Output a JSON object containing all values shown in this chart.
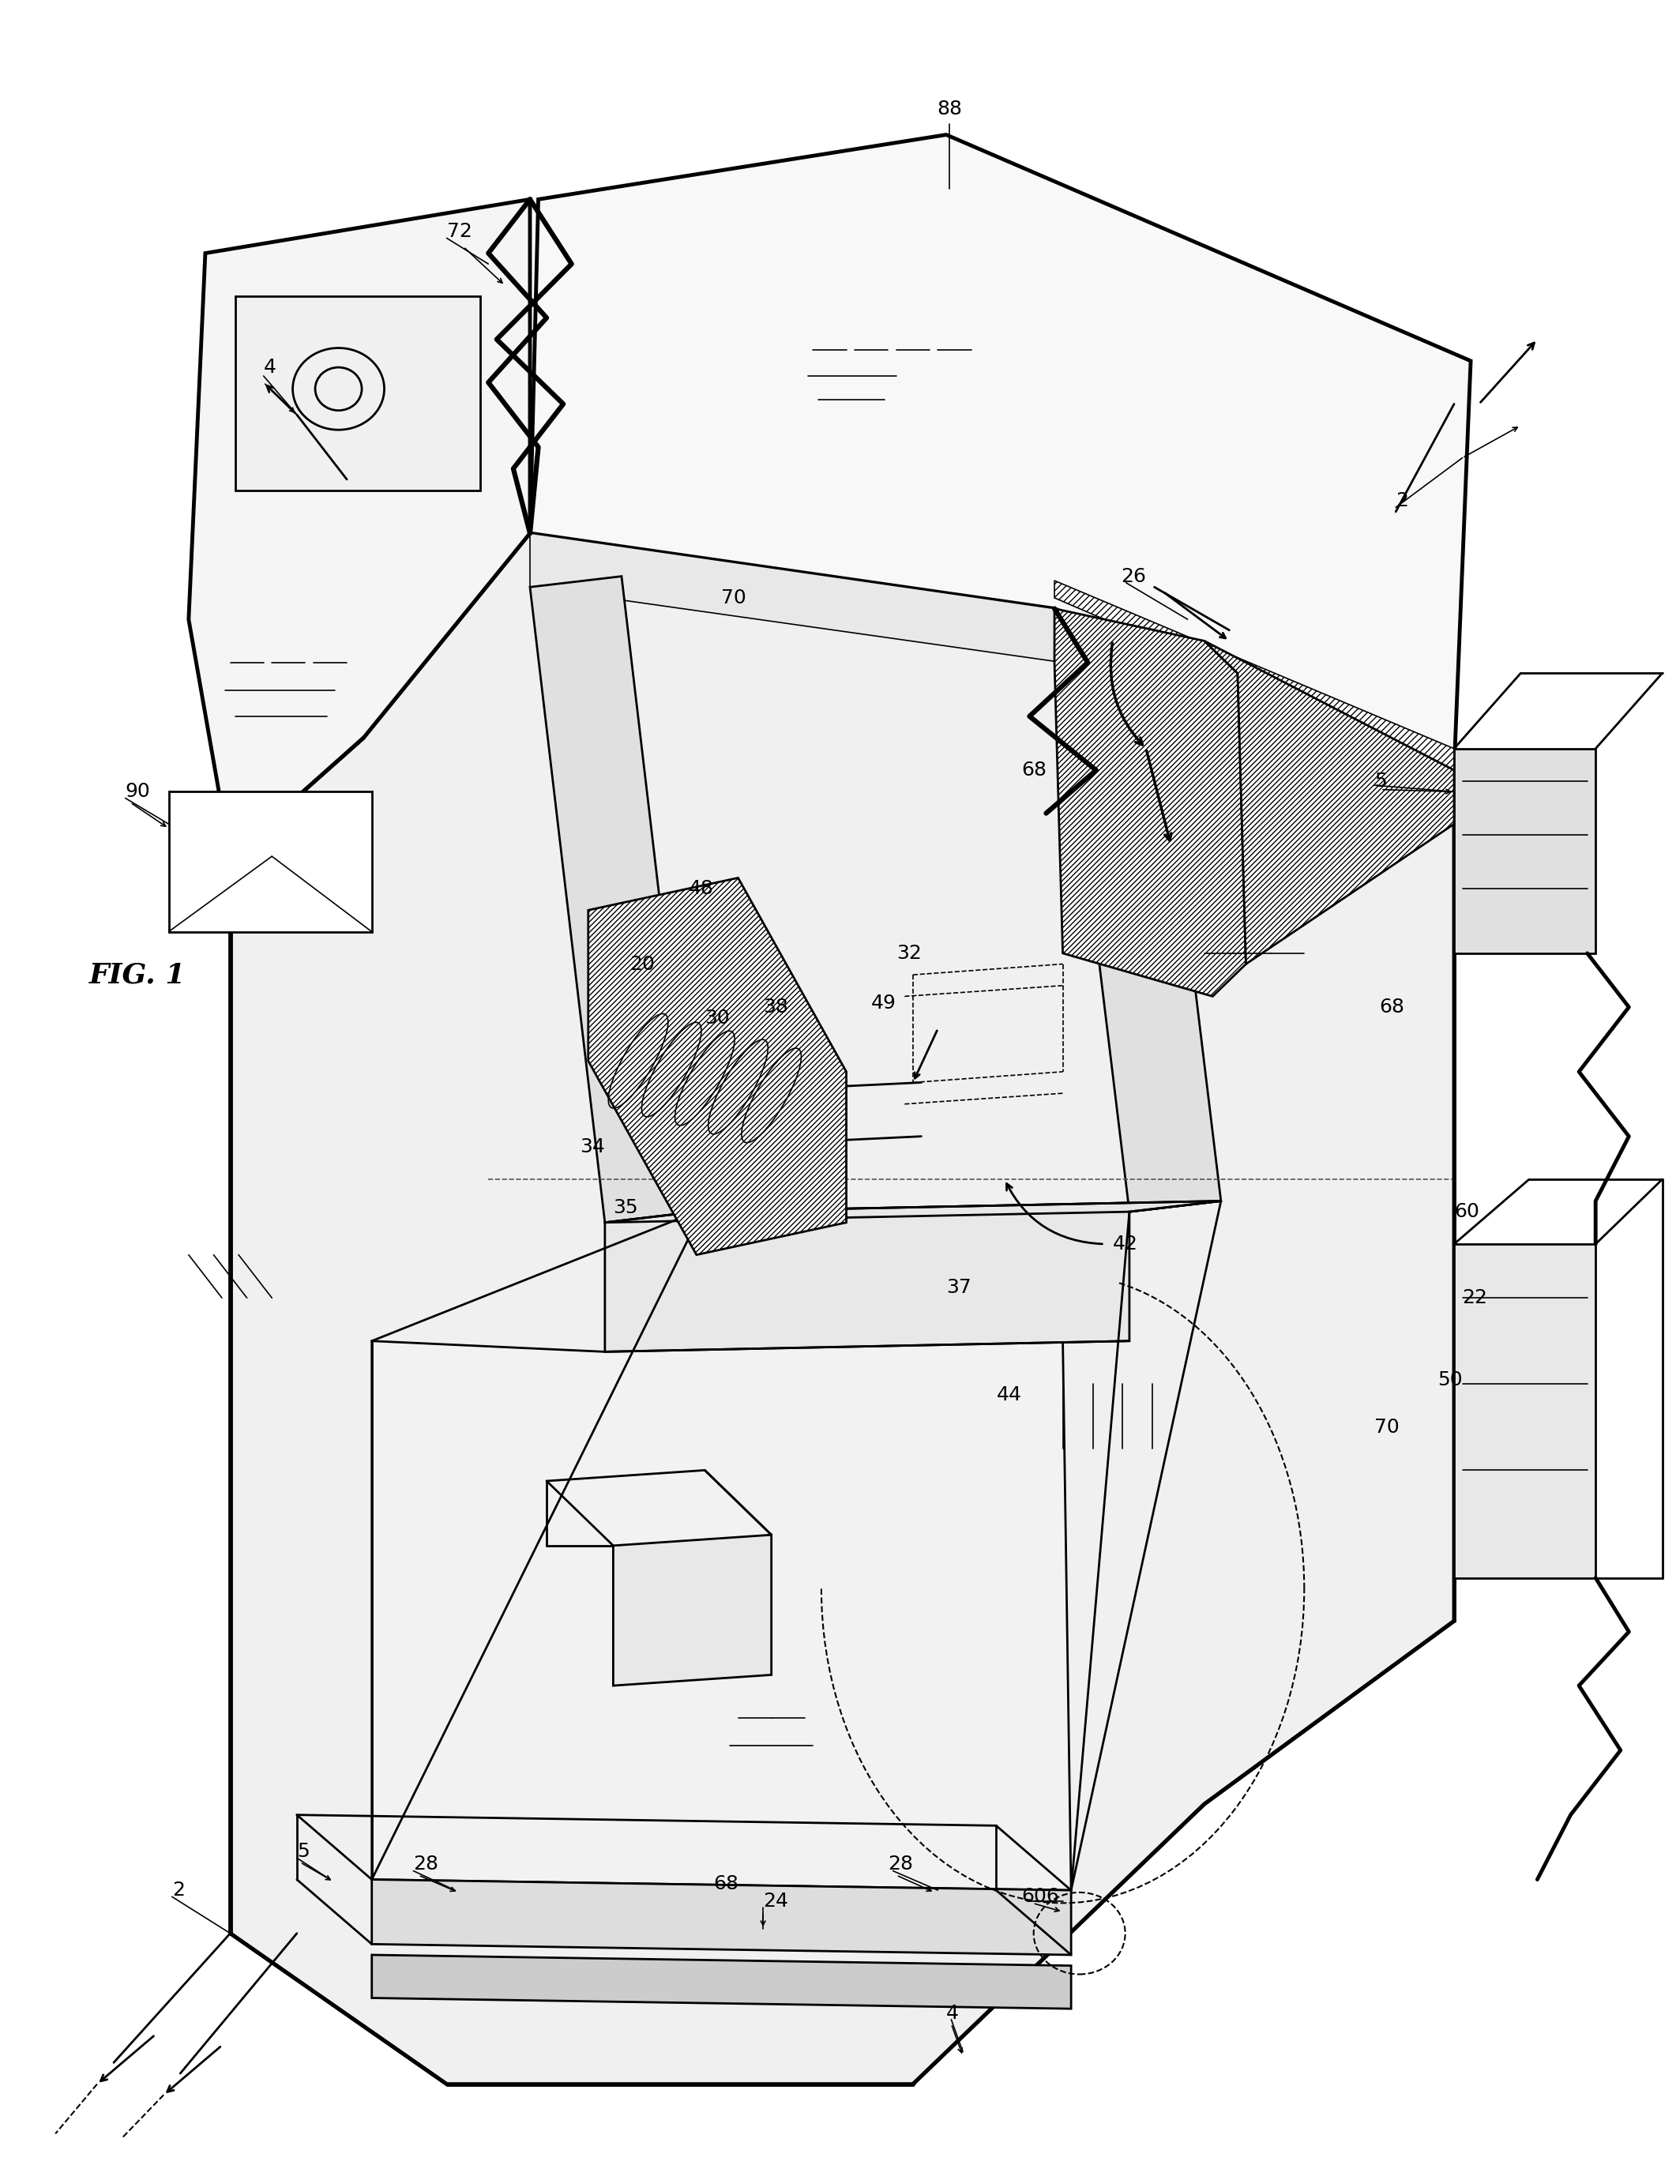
{
  "background_color": "#ffffff",
  "line_color": "#000000",
  "fig_label": "FIG. 1",
  "lw_thick": 3.5,
  "lw_main": 2.0,
  "lw_thin": 1.2,
  "lw_dashed": 1.5,
  "label_fs": 18,
  "fig_label_fs": 26
}
